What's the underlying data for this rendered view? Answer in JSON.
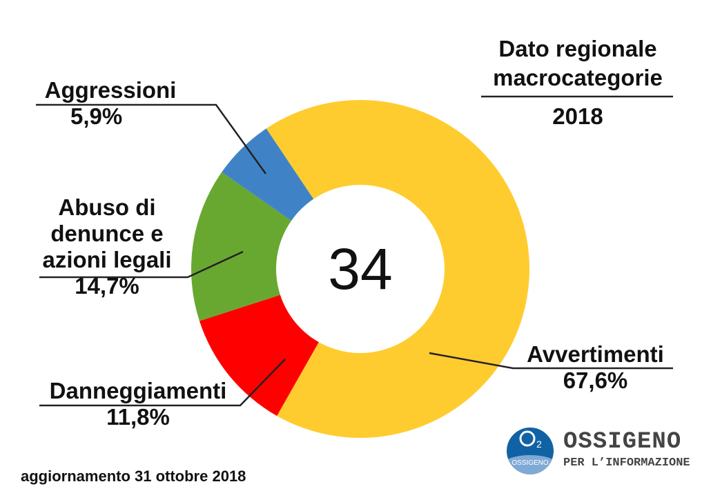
{
  "chart_data": {
    "type": "pie",
    "variant": "donut",
    "title": "Dato regionale macrocategorie",
    "title_lines": [
      "Dato regionale",
      "macrocategorie"
    ],
    "year": "2018",
    "center_value": "34",
    "slices": [
      {
        "name": "Avvertimenti",
        "value": 67.6,
        "label": "67,6%",
        "color": "#FFCC2F"
      },
      {
        "name": "Danneggiamenti",
        "value": 11.8,
        "label": "11,8%",
        "color": "#FF0000"
      },
      {
        "name": "Abuso di denunce e azioni legali",
        "value": 14.7,
        "label": "14,7%",
        "color": "#69A830"
      },
      {
        "name": "Aggressioni",
        "value": 5.9,
        "label": "5,9%",
        "color": "#3F83C6"
      }
    ],
    "abuso_lines": [
      "Abuso di",
      "denunce e",
      "azioni legali"
    ]
  },
  "footer": "aggiornamento 31 ottobre 2018",
  "logo": {
    "mark": "O2",
    "mark_sub": "OSSIGENO",
    "name": "OSSIGENO",
    "subtitle": "PER L’INFORMAZIONE",
    "color": "#1162A4"
  }
}
